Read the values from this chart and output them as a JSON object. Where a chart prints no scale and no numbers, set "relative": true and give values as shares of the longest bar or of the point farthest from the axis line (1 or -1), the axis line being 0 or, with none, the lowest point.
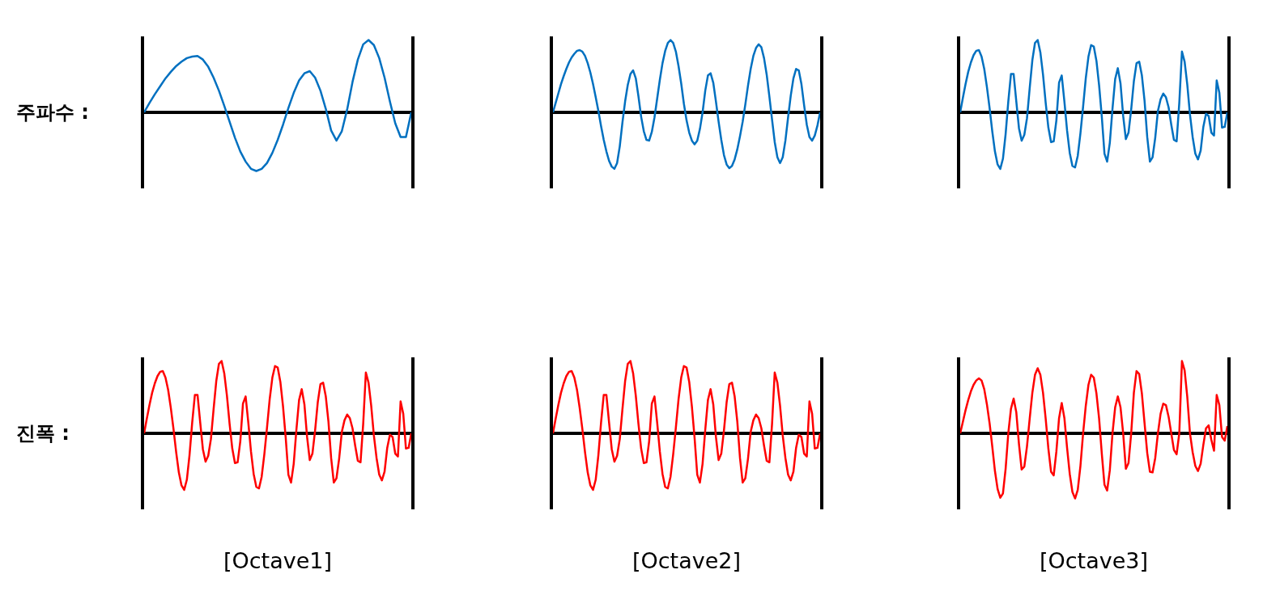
{
  "chart_data": [
    {
      "type": "line",
      "relative": true,
      "ylabel": "주파수 :",
      "categories": [
        null,
        null,
        null,
        null,
        null,
        null,
        null,
        null,
        null,
        null,
        null,
        null,
        null,
        null,
        null,
        null,
        null,
        null,
        null,
        null,
        null,
        null,
        null,
        null,
        null,
        null,
        null,
        null,
        null,
        null,
        null,
        null,
        null,
        null,
        null,
        null,
        null,
        null,
        null,
        null,
        null,
        null,
        null,
        null,
        null,
        null,
        null,
        null,
        null,
        null,
        null
      ],
      "series": [
        {
          "color": "#0070c0",
          "values": [
            0,
            0.13,
            0.25,
            0.36,
            0.47,
            0.56,
            0.64,
            0.7,
            0.75,
            0.77,
            0.78,
            0.73,
            0.63,
            0.48,
            0.3,
            0.09,
            -0.13,
            -0.35,
            -0.54,
            -0.68,
            -0.78,
            -0.81,
            -0.78,
            -0.7,
            -0.56,
            -0.38,
            -0.17,
            0.06,
            0.27,
            0.44,
            0.54,
            0.57,
            0.48,
            0.3,
            0.05,
            -0.25,
            -0.39,
            -0.26,
            0.04,
            0.42,
            0.73,
            0.94,
            1.0,
            0.93,
            0.75,
            0.48,
            0.15,
            -0.15,
            -0.34,
            -0.34,
            0
          ]
        }
      ]
    },
    {
      "type": "line",
      "relative": true,
      "categories": [
        null,
        null,
        null,
        null,
        null,
        null,
        null,
        null,
        null,
        null,
        null,
        null,
        null,
        null,
        null,
        null,
        null,
        null,
        null,
        null,
        null,
        null,
        null,
        null,
        null,
        null,
        null,
        null,
        null,
        null,
        null,
        null,
        null,
        null,
        null,
        null,
        null,
        null,
        null,
        null,
        null,
        null,
        null,
        null,
        null,
        null,
        null,
        null,
        null,
        null,
        null,
        null,
        null,
        null,
        null,
        null,
        null,
        null,
        null,
        null,
        null,
        null,
        null,
        null,
        null,
        null,
        null,
        null,
        null,
        null,
        null,
        null,
        null,
        null,
        null,
        null,
        null,
        null,
        null,
        null,
        null,
        null,
        null,
        null,
        null,
        null,
        null,
        null,
        null,
        null,
        null,
        null,
        null,
        null,
        null,
        null,
        null,
        null,
        null,
        null,
        null
      ],
      "series": [
        {
          "color": "#0070c0",
          "values": [
            0,
            0.13,
            0.26,
            0.39,
            0.5,
            0.6,
            0.69,
            0.76,
            0.81,
            0.85,
            0.86,
            0.84,
            0.78,
            0.68,
            0.55,
            0.39,
            0.21,
            0.02,
            -0.19,
            -0.38,
            -0.54,
            -0.67,
            -0.75,
            -0.78,
            -0.7,
            -0.47,
            -0.14,
            0.15,
            0.38,
            0.53,
            0.58,
            0.47,
            0.22,
            -0.06,
            -0.26,
            -0.38,
            -0.39,
            -0.27,
            -0.07,
            0.19,
            0.45,
            0.68,
            0.85,
            0.96,
            1.0,
            0.96,
            0.84,
            0.64,
            0.4,
            0.12,
            -0.11,
            -0.28,
            -0.39,
            -0.44,
            -0.39,
            -0.23,
            0,
            0.3,
            0.51,
            0.54,
            0.41,
            0.15,
            -0.13,
            -0.38,
            -0.59,
            -0.72,
            -0.77,
            -0.74,
            -0.65,
            -0.51,
            -0.33,
            -0.13,
            0.11,
            0.37,
            0.6,
            0.78,
            0.89,
            0.94,
            0.9,
            0.75,
            0.52,
            0.22,
            -0.1,
            -0.41,
            -0.62,
            -0.7,
            -0.62,
            -0.39,
            -0.07,
            0.23,
            0.47,
            0.6,
            0.58,
            0.39,
            0.1,
            -0.17,
            -0.34,
            -0.39,
            -0.32,
            -0.18,
            0
          ]
        }
      ]
    },
    {
      "type": "line",
      "relative": true,
      "categories": [
        null,
        null,
        null,
        null,
        null,
        null,
        null,
        null,
        null,
        null,
        null,
        null,
        null,
        null,
        null,
        null,
        null,
        null,
        null,
        null,
        null,
        null,
        null,
        null,
        null,
        null,
        null,
        null,
        null,
        null,
        null,
        null,
        null,
        null,
        null,
        null,
        null,
        null,
        null,
        null,
        null,
        null,
        null,
        null,
        null,
        null,
        null,
        null,
        null,
        null,
        null,
        null,
        null,
        null,
        null,
        null,
        null,
        null,
        null,
        null,
        null,
        null,
        null,
        null,
        null,
        null,
        null,
        null,
        null,
        null,
        null,
        null,
        null,
        null,
        null,
        null,
        null,
        null,
        null,
        null,
        null,
        null,
        null,
        null,
        null,
        null,
        null,
        null,
        null,
        null,
        null,
        null,
        null,
        null,
        null,
        null,
        null,
        null,
        null,
        null,
        null
      ],
      "series": [
        {
          "color": "#0070c0",
          "values": [
            0,
            0.2,
            0.39,
            0.56,
            0.69,
            0.79,
            0.85,
            0.86,
            0.77,
            0.6,
            0.35,
            0.06,
            -0.26,
            -0.54,
            -0.72,
            -0.78,
            -0.64,
            -0.3,
            0.15,
            0.53,
            0.53,
            0.15,
            -0.22,
            -0.39,
            -0.31,
            -0.08,
            0.33,
            0.72,
            0.96,
            1.0,
            0.83,
            0.52,
            0.13,
            -0.21,
            -0.41,
            -0.4,
            -0.11,
            0.41,
            0.51,
            0.15,
            -0.25,
            -0.56,
            -0.74,
            -0.76,
            -0.6,
            -0.29,
            0.08,
            0.47,
            0.77,
            0.93,
            0.91,
            0.71,
            0.37,
            -0.06,
            -0.57,
            -0.68,
            -0.42,
            0.05,
            0.46,
            0.61,
            0.4,
            -0.05,
            -0.37,
            -0.28,
            0.04,
            0.43,
            0.68,
            0.7,
            0.51,
            0.16,
            -0.34,
            -0.68,
            -0.62,
            -0.35,
            0.02,
            0.18,
            0.26,
            0.21,
            0.07,
            -0.17,
            -0.38,
            -0.4,
            0.13,
            0.84,
            0.7,
            0.38,
            -0.03,
            -0.34,
            -0.57,
            -0.65,
            -0.53,
            -0.2,
            -0.02,
            -0.05,
            -0.28,
            -0.32,
            0.44,
            0.27,
            -0.21,
            -0.2,
            0
          ]
        }
      ]
    },
    {
      "type": "line",
      "relative": true,
      "ylabel": "진폭 :",
      "xlabel": "[Octave1]",
      "categories": [
        null,
        null,
        null,
        null,
        null,
        null,
        null,
        null,
        null,
        null,
        null,
        null,
        null,
        null,
        null,
        null,
        null,
        null,
        null,
        null,
        null,
        null,
        null,
        null,
        null,
        null,
        null,
        null,
        null,
        null,
        null,
        null,
        null,
        null,
        null,
        null,
        null,
        null,
        null,
        null,
        null,
        null,
        null,
        null,
        null,
        null,
        null,
        null,
        null,
        null,
        null,
        null,
        null,
        null,
        null,
        null,
        null,
        null,
        null,
        null,
        null,
        null,
        null,
        null,
        null,
        null,
        null,
        null,
        null,
        null,
        null,
        null,
        null,
        null,
        null,
        null,
        null,
        null,
        null,
        null,
        null,
        null,
        null,
        null,
        null,
        null,
        null,
        null,
        null,
        null,
        null,
        null,
        null,
        null,
        null,
        null,
        null,
        null,
        null,
        null,
        null
      ],
      "series": [
        {
          "color": "#ff0000",
          "values": [
            0,
            0.2,
            0.39,
            0.56,
            0.69,
            0.79,
            0.85,
            0.86,
            0.77,
            0.6,
            0.35,
            0.06,
            -0.26,
            -0.54,
            -0.72,
            -0.78,
            -0.64,
            -0.3,
            0.15,
            0.53,
            0.53,
            0.15,
            -0.22,
            -0.39,
            -0.31,
            -0.08,
            0.33,
            0.72,
            0.96,
            1.0,
            0.83,
            0.52,
            0.13,
            -0.21,
            -0.41,
            -0.4,
            -0.11,
            0.41,
            0.51,
            0.15,
            -0.25,
            -0.56,
            -0.74,
            -0.76,
            -0.6,
            -0.29,
            0.08,
            0.47,
            0.77,
            0.93,
            0.91,
            0.71,
            0.37,
            -0.06,
            -0.57,
            -0.68,
            -0.42,
            0.05,
            0.46,
            0.61,
            0.4,
            -0.05,
            -0.37,
            -0.28,
            0.04,
            0.43,
            0.68,
            0.7,
            0.51,
            0.16,
            -0.34,
            -0.68,
            -0.62,
            -0.35,
            0.02,
            0.18,
            0.26,
            0.21,
            0.07,
            -0.17,
            -0.38,
            -0.4,
            0.13,
            0.84,
            0.7,
            0.38,
            -0.03,
            -0.34,
            -0.57,
            -0.65,
            -0.53,
            -0.2,
            -0.02,
            -0.05,
            -0.28,
            -0.32,
            0.44,
            0.27,
            -0.21,
            -0.2,
            0
          ]
        }
      ]
    },
    {
      "type": "line",
      "relative": true,
      "xlabel": "[Octave2]",
      "categories": [
        null,
        null,
        null,
        null,
        null,
        null,
        null,
        null,
        null,
        null,
        null,
        null,
        null,
        null,
        null,
        null,
        null,
        null,
        null,
        null,
        null,
        null,
        null,
        null,
        null,
        null,
        null,
        null,
        null,
        null,
        null,
        null,
        null,
        null,
        null,
        null,
        null,
        null,
        null,
        null,
        null,
        null,
        null,
        null,
        null,
        null,
        null,
        null,
        null,
        null,
        null,
        null,
        null,
        null,
        null,
        null,
        null,
        null,
        null,
        null,
        null,
        null,
        null,
        null,
        null,
        null,
        null,
        null,
        null,
        null,
        null,
        null,
        null,
        null,
        null,
        null,
        null,
        null,
        null,
        null,
        null,
        null,
        null,
        null,
        null,
        null,
        null,
        null,
        null,
        null,
        null,
        null,
        null,
        null,
        null,
        null,
        null,
        null,
        null,
        null,
        null
      ],
      "series": [
        {
          "color": "#ff0000",
          "values": [
            0,
            0.2,
            0.39,
            0.56,
            0.69,
            0.79,
            0.85,
            0.86,
            0.77,
            0.6,
            0.35,
            0.06,
            -0.26,
            -0.54,
            -0.72,
            -0.78,
            -0.64,
            -0.3,
            0.15,
            0.53,
            0.53,
            0.15,
            -0.22,
            -0.39,
            -0.31,
            -0.08,
            0.33,
            0.72,
            0.96,
            1.0,
            0.83,
            0.52,
            0.13,
            -0.21,
            -0.41,
            -0.4,
            -0.11,
            0.41,
            0.51,
            0.15,
            -0.25,
            -0.56,
            -0.74,
            -0.76,
            -0.6,
            -0.29,
            0.08,
            0.47,
            0.77,
            0.93,
            0.91,
            0.71,
            0.37,
            -0.06,
            -0.57,
            -0.68,
            -0.42,
            0.05,
            0.46,
            0.61,
            0.4,
            -0.05,
            -0.37,
            -0.28,
            0.04,
            0.43,
            0.68,
            0.7,
            0.51,
            0.16,
            -0.34,
            -0.68,
            -0.62,
            -0.35,
            0.02,
            0.18,
            0.26,
            0.21,
            0.07,
            -0.17,
            -0.38,
            -0.4,
            0.13,
            0.84,
            0.7,
            0.38,
            -0.03,
            -0.34,
            -0.57,
            -0.65,
            -0.53,
            -0.2,
            -0.02,
            -0.05,
            -0.28,
            -0.32,
            0.44,
            0.27,
            -0.21,
            -0.2,
            0
          ]
        }
      ]
    },
    {
      "type": "line",
      "relative": true,
      "xlabel": "[Octave3]",
      "categories": [
        null,
        null,
        null,
        null,
        null,
        null,
        null,
        null,
        null,
        null,
        null,
        null,
        null,
        null,
        null,
        null,
        null,
        null,
        null,
        null,
        null,
        null,
        null,
        null,
        null,
        null,
        null,
        null,
        null,
        null,
        null,
        null,
        null,
        null,
        null,
        null,
        null,
        null,
        null,
        null,
        null,
        null,
        null,
        null,
        null,
        null,
        null,
        null,
        null,
        null,
        null,
        null,
        null,
        null,
        null,
        null,
        null,
        null,
        null,
        null,
        null,
        null,
        null,
        null,
        null,
        null,
        null,
        null,
        null,
        null,
        null,
        null,
        null,
        null,
        null,
        null,
        null,
        null,
        null,
        null,
        null,
        null,
        null,
        null,
        null,
        null,
        null,
        null,
        null,
        null,
        null,
        null,
        null,
        null,
        null,
        null,
        null,
        null,
        null,
        null,
        null
      ],
      "series": [
        {
          "color": "#ff0000",
          "values": [
            0,
            0.16,
            0.32,
            0.46,
            0.58,
            0.67,
            0.73,
            0.76,
            0.73,
            0.61,
            0.4,
            0.14,
            -0.18,
            -0.52,
            -0.77,
            -0.89,
            -0.83,
            -0.49,
            0,
            0.34,
            0.48,
            0.29,
            -0.15,
            -0.5,
            -0.46,
            -0.18,
            0.2,
            0.56,
            0.81,
            0.9,
            0.81,
            0.56,
            0.2,
            -0.21,
            -0.53,
            -0.58,
            -0.25,
            0.21,
            0.42,
            0.21,
            -0.2,
            -0.56,
            -0.81,
            -0.9,
            -0.78,
            -0.45,
            0,
            0.38,
            0.67,
            0.81,
            0.77,
            0.55,
            0.2,
            -0.28,
            -0.71,
            -0.79,
            -0.51,
            0,
            0.36,
            0.51,
            0.36,
            0,
            -0.49,
            -0.41,
            0,
            0.56,
            0.86,
            0.82,
            0.55,
            0.14,
            -0.27,
            -0.53,
            -0.54,
            -0.34,
            0,
            0.27,
            0.41,
            0.39,
            0.23,
            0,
            -0.23,
            -0.29,
            0,
            1.0,
            0.87,
            0.5,
            0,
            -0.26,
            -0.45,
            -0.52,
            -0.42,
            -0.16,
            0.07,
            0.11,
            -0.09,
            -0.24,
            0.53,
            0.39,
            -0.05,
            -0.1,
            0.1
          ]
        }
      ]
    }
  ]
}
